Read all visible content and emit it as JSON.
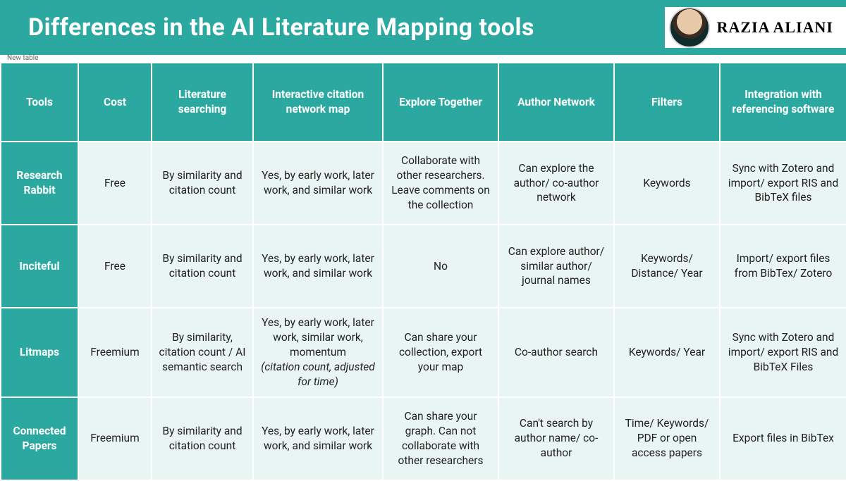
{
  "header": {
    "title": "Differences in the AI Literature Mapping tools",
    "author_name": "RAZIA ALIANI",
    "new_label": "New table"
  },
  "colors": {
    "header_bg": "#2ba8a0",
    "header_text": "#ffffff",
    "cell_bg": "#e8f5f3",
    "cell_text": "#222222",
    "border": "#ffffff"
  },
  "table": {
    "columns": [
      "Tools",
      "Cost",
      "Literature searching",
      "Interactive citation network map",
      "Explore Together",
      "Author Network",
      "Filters",
      "Integration with referencing software"
    ],
    "rows": [
      {
        "tool": "Research Rabbit",
        "cost": "Free",
        "lit": "By similarity and citation count",
        "map": "Yes, by early work, later work, and similar work",
        "map_note": "",
        "explore": "Collaborate with other researchers. Leave comments on the collection",
        "author": "Can explore the author/ co-author network",
        "filters": "Keywords",
        "integration": "Sync with Zotero and import/ export RIS and BibTeX files"
      },
      {
        "tool": "Inciteful",
        "cost": "Free",
        "lit": "By similarity and citation count",
        "map": "Yes, by early work, later work, and similar work",
        "map_note": "",
        "explore": "No",
        "author": "Can explore author/ similar author/ journal names",
        "filters": "Keywords/ Distance/ Year",
        "integration": "Import/ export files from BibTex/ Zotero"
      },
      {
        "tool": "Litmaps",
        "cost": "Freemium",
        "lit": "By similarity, citation count / AI semantic search",
        "map": "Yes, by early work, later work, similar work, momentum",
        "map_note": "(citation count, adjusted for time)",
        "explore": "Can share your collection, export your map",
        "author": "Co-author search",
        "filters": "Keywords/ Year",
        "integration": "Sync with Zotero and import/ export RIS and BibTeX Files"
      },
      {
        "tool": "Connected Papers",
        "cost": "Freemium",
        "lit": "By similarity and citation count",
        "map": "Yes, by early work, later work, and similar work",
        "map_note": "",
        "explore": "Can share your graph. Can not collaborate with other researchers",
        "author": "Can't search by author name/ co-author",
        "filters": "Time/ Keywords/ PDF or open access papers",
        "integration": "Export files in BibTex"
      }
    ]
  }
}
